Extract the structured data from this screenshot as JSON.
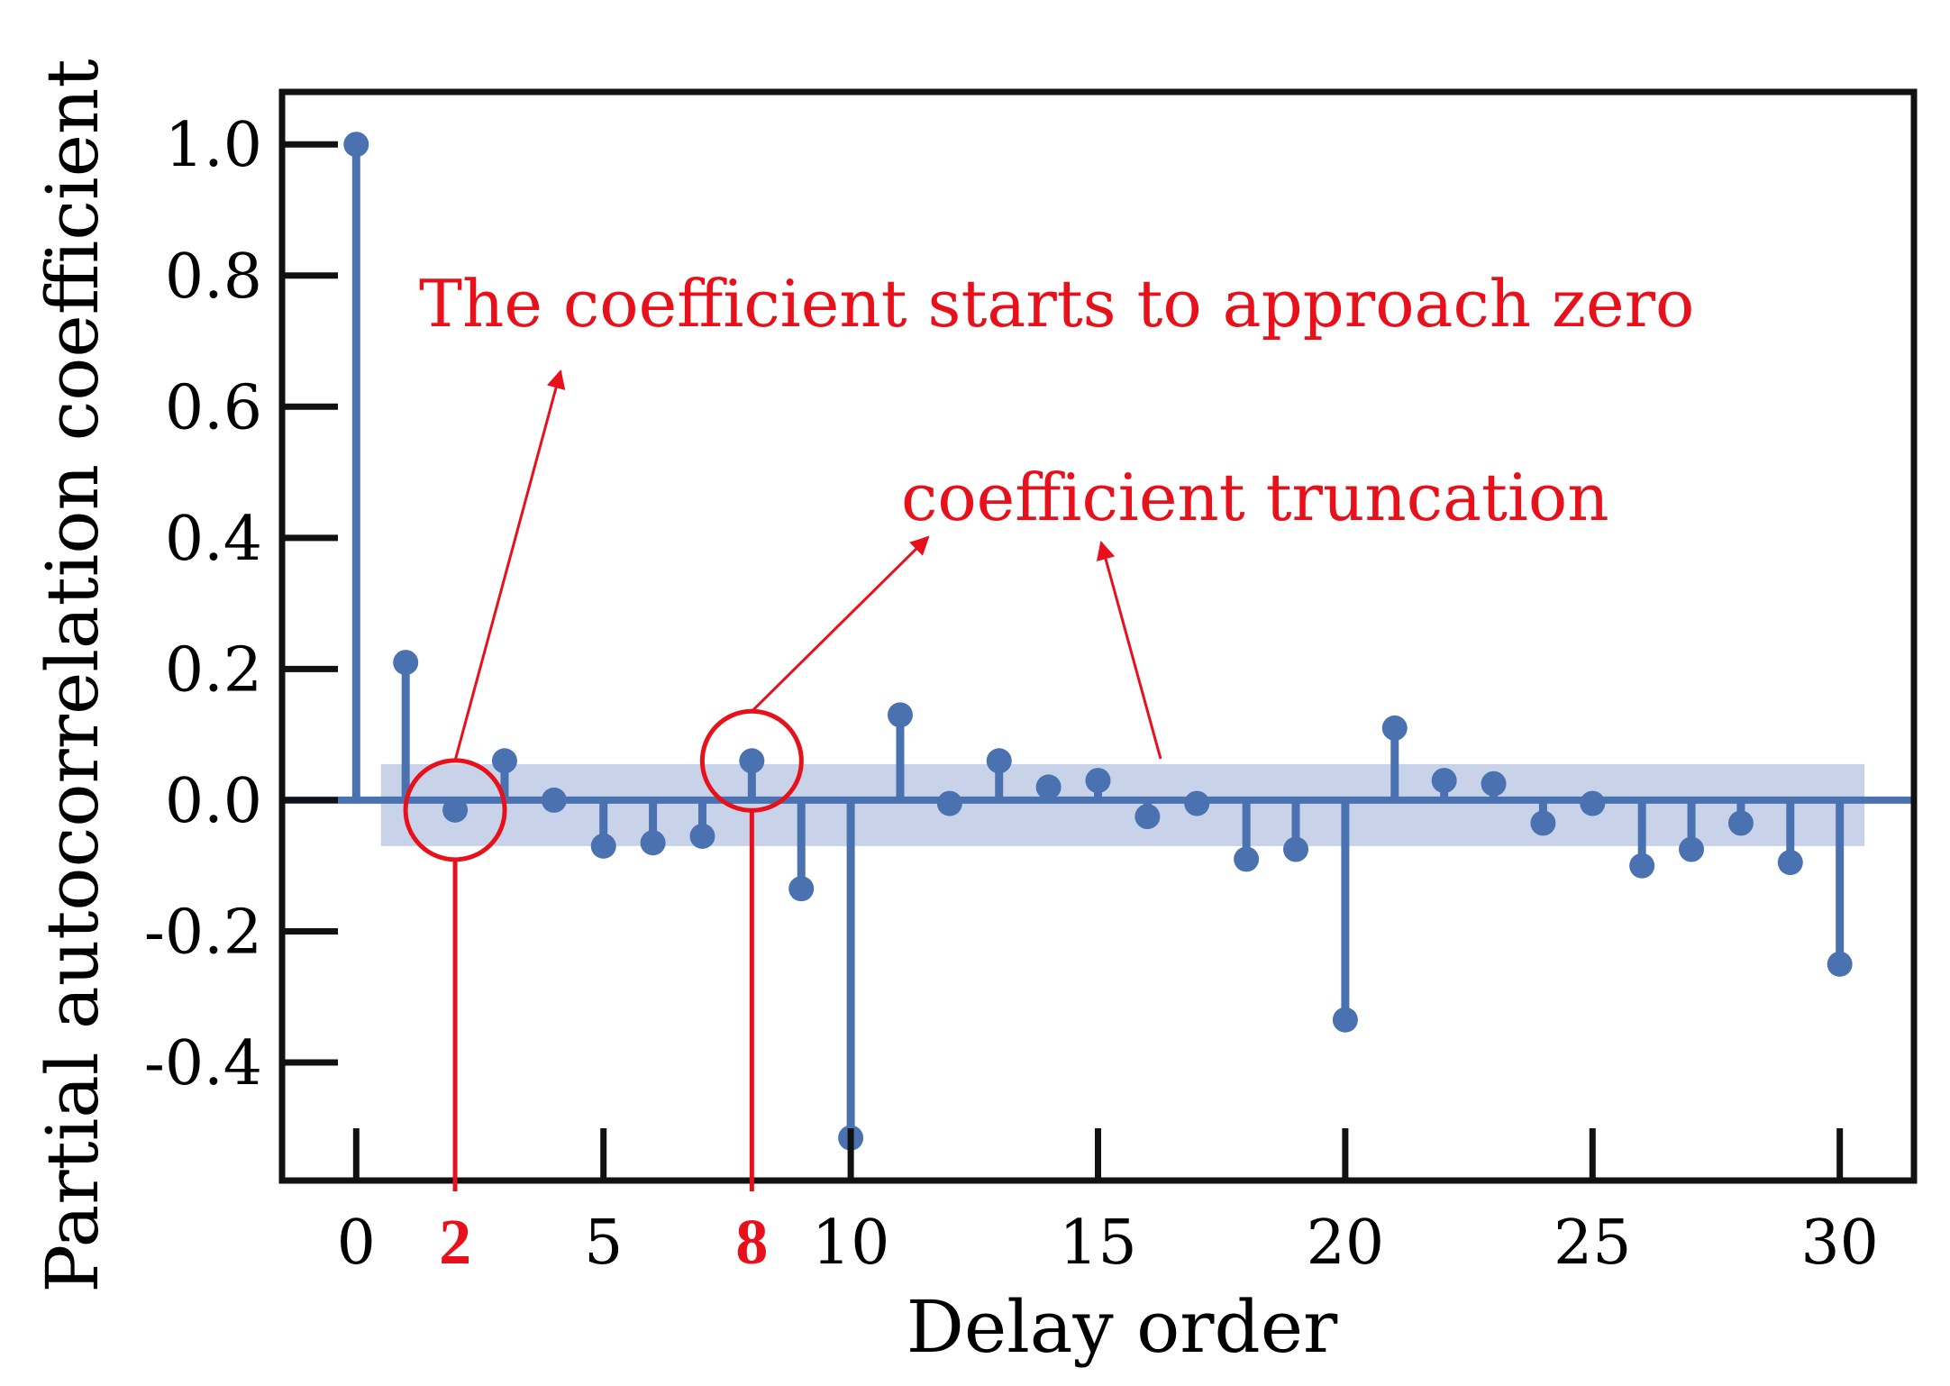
{
  "colors": {
    "stem": "#4a72b0",
    "band": "#c8d3ea",
    "annotation": "#e8101a",
    "frame": "#111111"
  },
  "chart_data": {
    "type": "stem",
    "xlabel": "Delay order",
    "ylabel": "Partial autocorrelation coefficient",
    "xlim": [
      -1.5,
      31.5
    ],
    "ylim": [
      -0.58,
      1.08
    ],
    "x_ticks": [
      0,
      5,
      10,
      15,
      20,
      25,
      30
    ],
    "y_ticks": [
      1.0,
      0.8,
      0.6,
      0.4,
      0.2,
      0.0,
      -0.2,
      -0.4
    ],
    "y_tick_labels": [
      "1.0",
      "0.8",
      "0.6",
      "0.4",
      "0.2",
      "0.0",
      "-0.2",
      "-0.4"
    ],
    "confidence_band": [
      -0.07,
      0.055
    ],
    "series": [
      {
        "x": [
          0,
          1,
          2,
          3,
          4,
          5,
          6,
          7,
          8,
          9,
          10,
          11,
          12,
          13,
          14,
          15,
          16,
          17,
          18,
          19,
          20,
          21,
          22,
          23,
          24,
          25,
          26,
          27,
          28,
          29,
          30
        ],
        "values": [
          1.0,
          0.21,
          -0.015,
          0.06,
          0.0,
          -0.07,
          -0.065,
          -0.055,
          0.06,
          -0.135,
          -0.515,
          0.13,
          -0.005,
          0.06,
          0.02,
          0.03,
          -0.025,
          -0.005,
          -0.09,
          -0.075,
          -0.335,
          0.11,
          0.03,
          0.025,
          -0.035,
          -0.005,
          -0.1,
          -0.075,
          -0.035,
          -0.095,
          -0.25
        ]
      }
    ],
    "highlighted_lags": [
      {
        "x": 2,
        "label": "2"
      },
      {
        "x": 8,
        "label": "8"
      }
    ],
    "annotations": [
      {
        "text": "The coefficient starts to approach zero"
      },
      {
        "text": "coefficient truncation"
      }
    ]
  }
}
